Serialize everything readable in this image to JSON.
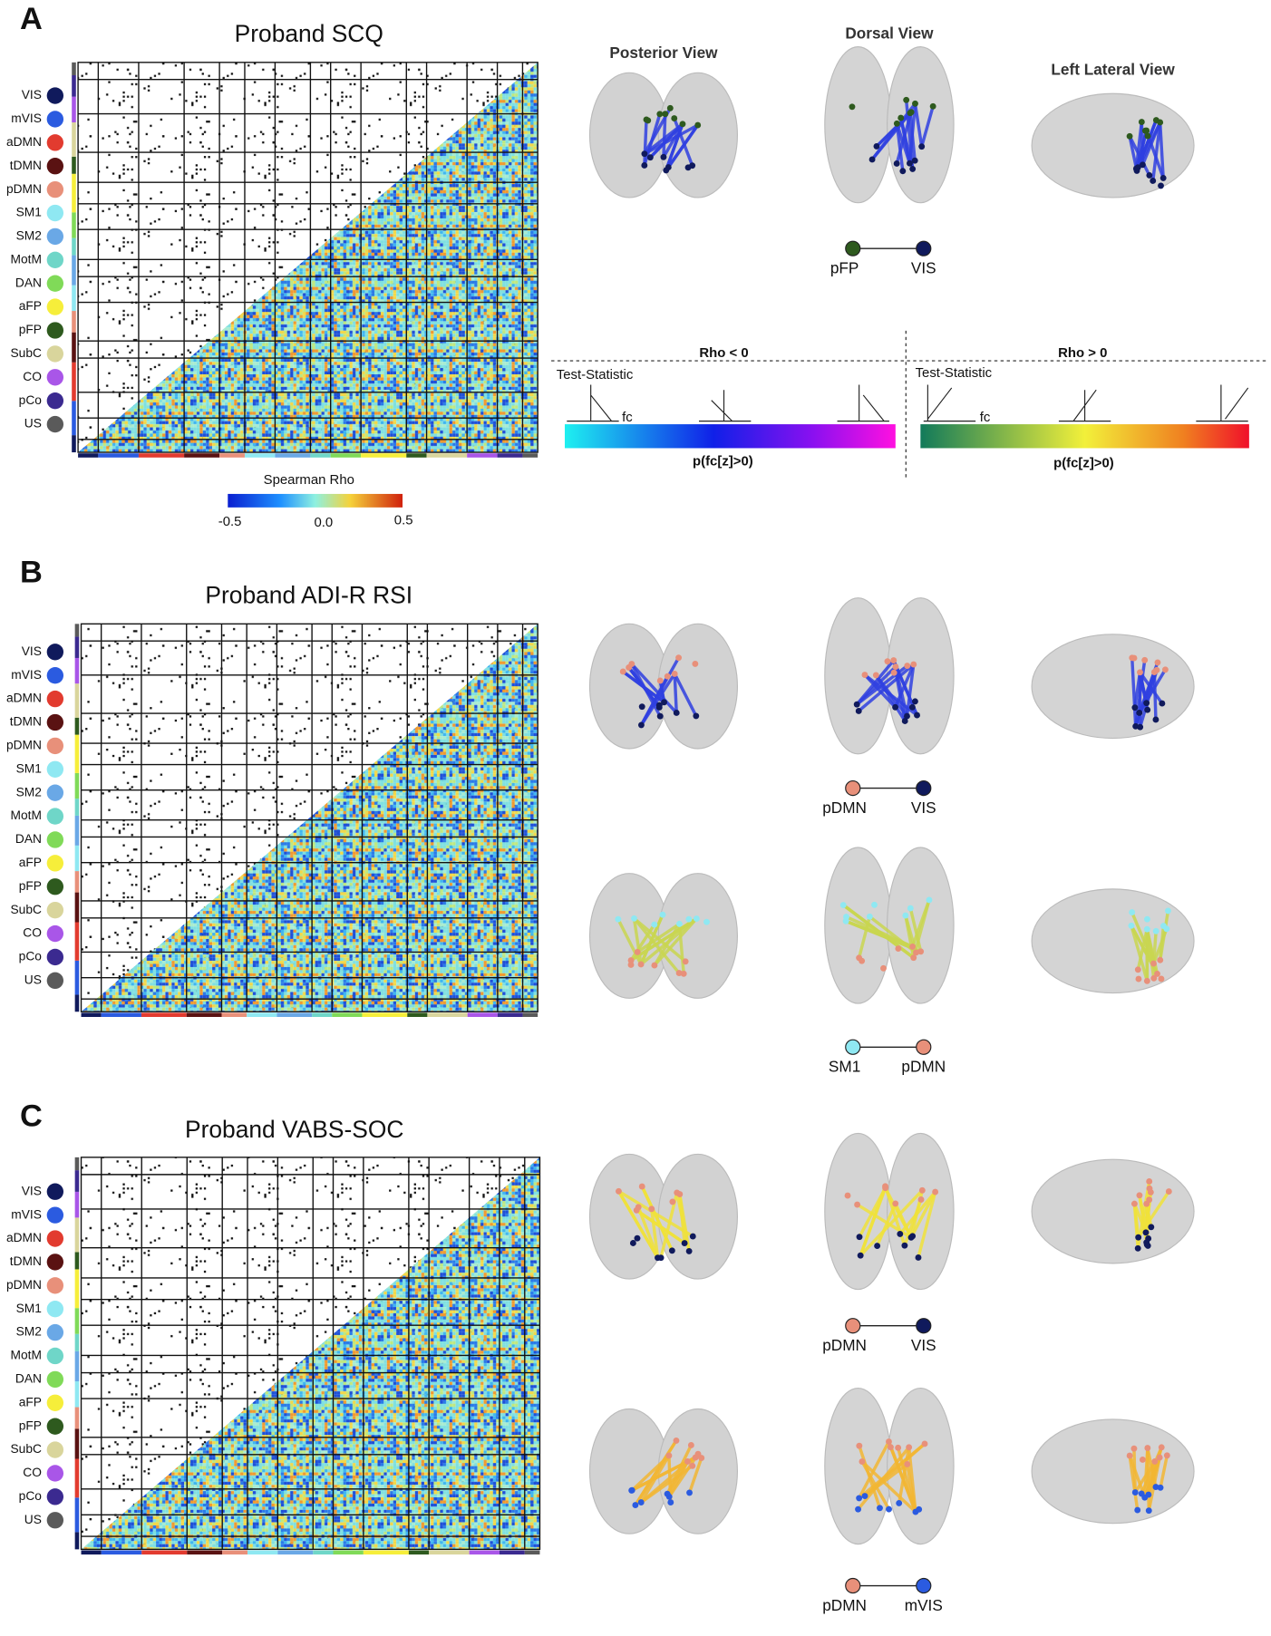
{
  "panels": [
    {
      "letter": "A",
      "title": "Proband SCQ",
      "views": [
        "Posterior View",
        "Dorsal View",
        "Left Lateral View"
      ],
      "pairs": [
        {
          "nodes": [
            "pFP",
            "VIS"
          ],
          "edge_color": "#2f3fe0"
        }
      ]
    },
    {
      "letter": "B",
      "title": "Proband ADI-R RSI",
      "pairs": [
        {
          "nodes": [
            "pDMN",
            "VIS"
          ],
          "edge_color": "#2f3fe0"
        },
        {
          "nodes": [
            "SM1",
            "pDMN"
          ],
          "edge_color": "#c9d650"
        }
      ]
    },
    {
      "letter": "C",
      "title": "Proband VABS-SOC",
      "pairs": [
        {
          "nodes": [
            "pDMN",
            "VIS"
          ],
          "edge_color": "#f0e23a"
        },
        {
          "nodes": [
            "pDMN",
            "mVIS"
          ],
          "edge_color": "#f2b632"
        }
      ]
    }
  ],
  "networks": [
    {
      "name": "VIS",
      "color": "#101a5c"
    },
    {
      "name": "mVIS",
      "color": "#2b5be0"
    },
    {
      "name": "aDMN",
      "color": "#e23b2f"
    },
    {
      "name": "tDMN",
      "color": "#5a1212"
    },
    {
      "name": "pDMN",
      "color": "#e8907a"
    },
    {
      "name": "SM1",
      "color": "#8fe8f2"
    },
    {
      "name": "SM2",
      "color": "#6aa8e6"
    },
    {
      "name": "MotM",
      "color": "#6fd6c8"
    },
    {
      "name": "DAN",
      "color": "#80da58"
    },
    {
      "name": "aFP",
      "color": "#f6ee3a"
    },
    {
      "name": "pFP",
      "color": "#2e5a1e"
    },
    {
      "name": "SubC",
      "color": "#d9d59c"
    },
    {
      "name": "CO",
      "color": "#a956e8"
    },
    {
      "name": "pCo",
      "color": "#3b2a90"
    },
    {
      "name": "US",
      "color": "#5a5a5a"
    }
  ],
  "colorbar": {
    "title": "Spearman Rho",
    "ticks": [
      "-0.5",
      "0.0",
      "0.5"
    ]
  },
  "legend": {
    "negative": {
      "title": "Rho < 0",
      "axis_label": "Test-Statistic",
      "x_label": "fc",
      "bar_label": "p(fc[z]>0)"
    },
    "positive": {
      "title": "Rho > 0",
      "axis_label": "Test-Statistic",
      "x_label": "fc",
      "bar_label": "p(fc[z]>0)"
    }
  }
}
